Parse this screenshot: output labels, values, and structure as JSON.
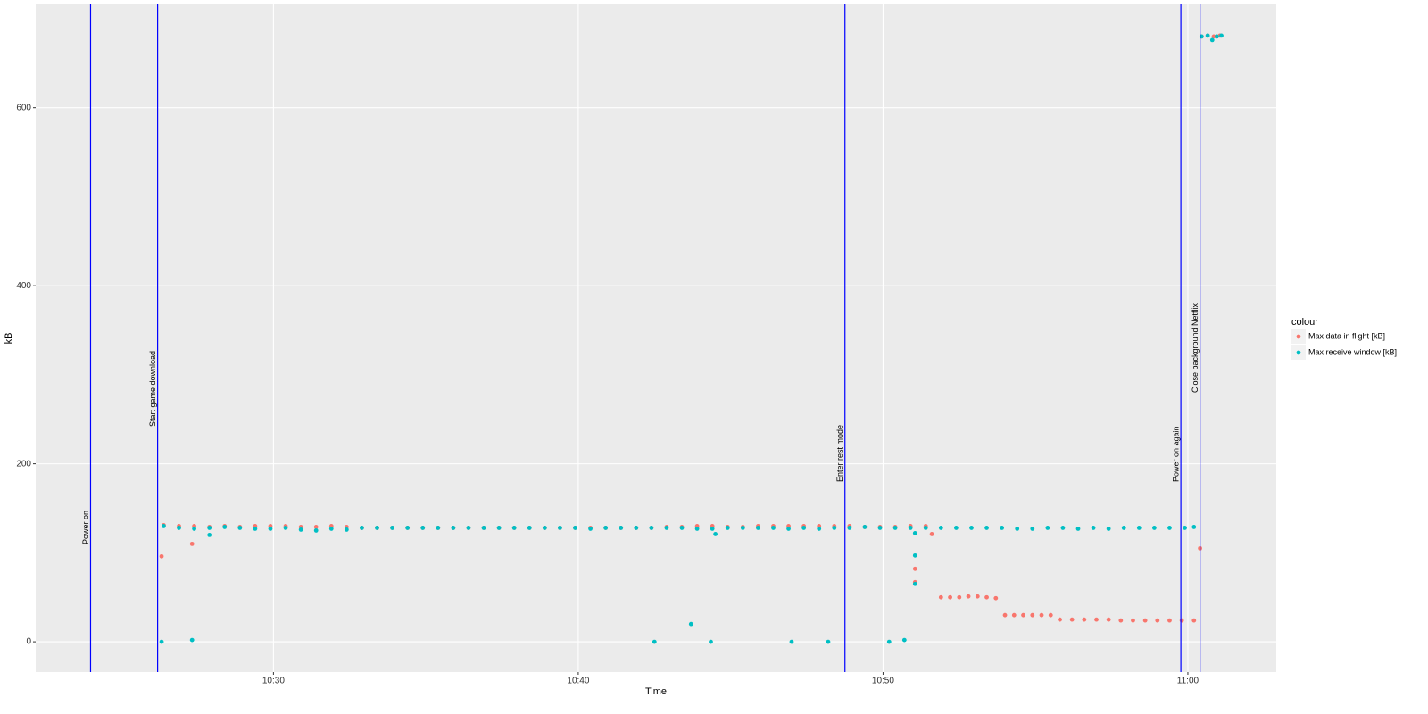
{
  "chart_data": {
    "type": "scatter",
    "xlabel": "Time",
    "ylabel": "kB",
    "xlim": [
      622.2,
      662.9
    ],
    "ylim": [
      -34,
      716
    ],
    "xticks": [
      {
        "value": 630,
        "label": "10:30"
      },
      {
        "value": 640,
        "label": "10:40"
      },
      {
        "value": 650,
        "label": "10:50"
      },
      {
        "value": 660,
        "label": "11:00"
      }
    ],
    "yticks": [
      0,
      200,
      400,
      600
    ],
    "grid": true,
    "legend_title": "colour",
    "vlines_color": "#0000ff",
    "vlines": [
      {
        "x": 624.0,
        "label": "Power on"
      },
      {
        "x": 626.2,
        "label": "Start game download"
      },
      {
        "x": 648.75,
        "label": "Enter rest mode"
      },
      {
        "x": 659.77,
        "label": "Power on again"
      },
      {
        "x": 660.4,
        "label": "Close background Netflix"
      }
    ],
    "series": [
      {
        "name": "Max data in flight [kB]",
        "color": "#F8766D",
        "x": [
          626.4,
          626.9,
          627.4,
          627.9,
          628.4,
          628.9,
          629.4,
          629.9,
          630.4,
          630.9,
          631.4,
          631.9,
          632.4,
          632.9,
          633.4,
          633.9,
          634.4,
          634.9,
          635.4,
          635.9,
          636.4,
          636.9,
          637.4,
          637.9,
          638.4,
          638.9,
          639.4,
          639.9,
          640.4,
          640.9,
          641.4,
          641.9,
          642.4,
          642.9,
          643.4,
          643.9,
          644.4,
          644.9,
          645.4,
          645.9,
          646.4,
          646.9,
          647.4,
          647.9,
          648.4,
          648.9,
          649.4,
          649.9,
          650.4,
          650.9,
          651.4,
          626.33,
          627.33,
          651.05,
          651.05,
          651.6,
          651.9,
          652.2,
          652.5,
          652.8,
          653.1,
          653.4,
          653.7,
          654.0,
          654.3,
          654.6,
          654.9,
          655.2,
          655.5,
          655.8,
          656.2,
          656.6,
          657.0,
          657.4,
          657.8,
          658.2,
          658.6,
          659.0,
          659.4,
          659.8,
          660.2,
          660.4,
          660.45,
          660.65,
          660.85,
          661.05
        ],
        "values": [
          131,
          130,
          130,
          129,
          130,
          129,
          130,
          130,
          130,
          129,
          129,
          130,
          129,
          128,
          128,
          128,
          128,
          128,
          128,
          128,
          128,
          128,
          128,
          128,
          128,
          128,
          128,
          128,
          128,
          128,
          128,
          128,
          128,
          129,
          129,
          130,
          130,
          129,
          129,
          130,
          130,
          130,
          130,
          130,
          130,
          130,
          129,
          129,
          129,
          130,
          130,
          96,
          110,
          82,
          67,
          121,
          50,
          50,
          50,
          51,
          51,
          50,
          49,
          30,
          30,
          30,
          30,
          30,
          30,
          25,
          25,
          25,
          25,
          25,
          24,
          24,
          24,
          24,
          24,
          24,
          24,
          105,
          680,
          681,
          680,
          681
        ]
      },
      {
        "name": "Max receive window [kB]",
        "color": "#00BFC4",
        "x": [
          626.4,
          626.9,
          627.4,
          627.9,
          628.4,
          628.9,
          629.4,
          629.9,
          630.4,
          630.9,
          631.4,
          631.9,
          632.4,
          632.9,
          633.4,
          633.9,
          634.4,
          634.9,
          635.4,
          635.9,
          636.4,
          636.9,
          637.4,
          637.9,
          638.4,
          638.9,
          639.4,
          639.9,
          640.4,
          640.9,
          641.4,
          641.9,
          642.4,
          642.9,
          643.4,
          643.9,
          644.4,
          644.9,
          645.4,
          645.9,
          646.4,
          646.9,
          647.4,
          647.9,
          648.4,
          648.9,
          649.4,
          649.9,
          650.4,
          650.9,
          651.4,
          651.9,
          652.4,
          652.9,
          653.4,
          653.9,
          654.4,
          654.9,
          655.4,
          655.9,
          656.4,
          656.9,
          657.4,
          657.9,
          658.4,
          658.9,
          659.4,
          659.9,
          660.2,
          626.33,
          627.33,
          627.9,
          642.5,
          643.7,
          644.35,
          644.5,
          647.0,
          648.2,
          650.2,
          650.7,
          651.05,
          651.05,
          651.05,
          660.45,
          660.65,
          660.8,
          660.95,
          661.1
        ],
        "values": [
          130,
          128,
          127,
          128,
          129,
          128,
          127,
          127,
          128,
          126,
          125,
          127,
          126,
          128,
          128,
          128,
          128,
          128,
          128,
          128,
          128,
          128,
          128,
          128,
          128,
          128,
          128,
          128,
          127,
          128,
          128,
          128,
          128,
          128,
          128,
          127,
          127,
          128,
          128,
          128,
          128,
          127,
          128,
          127,
          128,
          128,
          129,
          128,
          128,
          128,
          128,
          128,
          128,
          128,
          128,
          128,
          127,
          127,
          128,
          128,
          127,
          128,
          127,
          128,
          128,
          128,
          128,
          128,
          129,
          0,
          2,
          120,
          0,
          20,
          0,
          121,
          0,
          0,
          0,
          2,
          97,
          65,
          122,
          680,
          681,
          676,
          680,
          681
        ]
      }
    ]
  }
}
